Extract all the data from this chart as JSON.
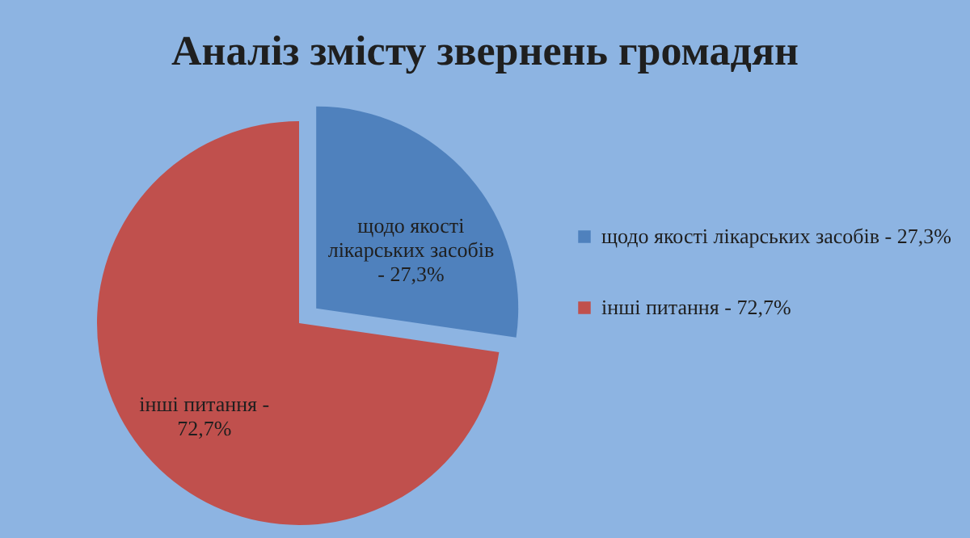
{
  "chart_data": {
    "type": "pie",
    "title": "Аналіз змісту звернень громадян",
    "categories": [
      "щодо якості лікарських засобів -",
      "інші питання -"
    ],
    "values": [
      27.3,
      72.7
    ],
    "colors": [
      "#4f81bd",
      "#c0504d"
    ],
    "value_labels": [
      "27,3%",
      "72,7%"
    ],
    "legend": "right"
  }
}
